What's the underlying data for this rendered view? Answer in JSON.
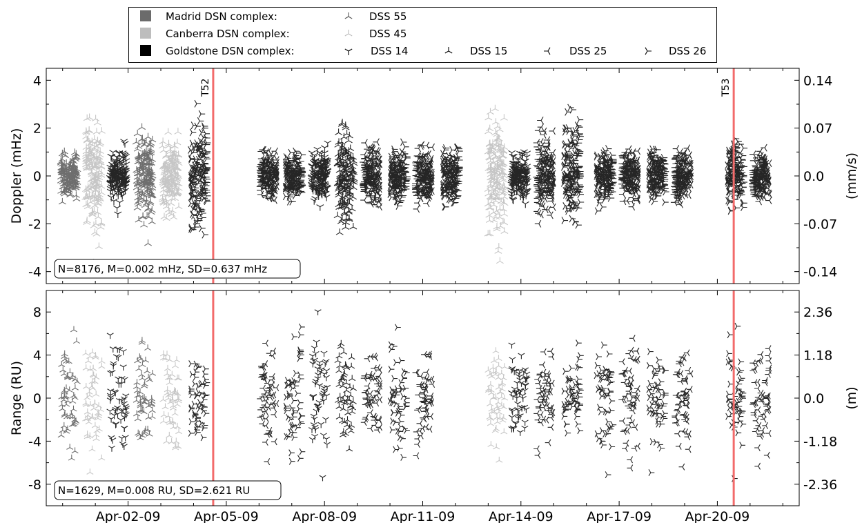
{
  "chart_data": [
    {
      "type": "scatter",
      "panel": "doppler",
      "ylabel": "Doppler (mHz)",
      "ylabel_right": "(mm/s)",
      "ylim": [
        -4.5,
        4.5
      ],
      "yticks": [
        -4,
        -2,
        0,
        2,
        4
      ],
      "yticklabels": [
        "-4",
        "-2",
        "0",
        "2",
        "4"
      ],
      "yticks_right": [
        -4,
        -2,
        0,
        2,
        4
      ],
      "yticklabels_right": [
        "-0.14",
        "-0.07",
        "0.0",
        "0.07",
        "0.14"
      ],
      "stats_label": "N=8176, M=0.002 mHz, SD=0.637 mHz",
      "passes": [
        {
          "day": 31.2,
          "station": "DSS 55",
          "spread": 1.0,
          "max": 1.1
        },
        {
          "day": 31.95,
          "station": "DSS 45",
          "spread": 2.6,
          "max": 3.7
        },
        {
          "day": 32.7,
          "station": "DSS 14",
          "spread": 1.2,
          "max": 1.6
        },
        {
          "day": 33.5,
          "station": "DSS 55",
          "spread": 2.1,
          "max": 2.9
        },
        {
          "day": 34.3,
          "station": "DSS 45",
          "spread": 1.8,
          "max": 2.0
        },
        {
          "day": 35.15,
          "station": "DSS 26",
          "spread": 2.6,
          "max": 3.2
        },
        {
          "day": 37.3,
          "station": "DSS 25",
          "spread": 1.2,
          "max": 1.1
        },
        {
          "day": 38.05,
          "station": "DSS 26",
          "spread": 1.2,
          "max": 1.1
        },
        {
          "day": 38.85,
          "station": "DSS 14",
          "spread": 1.1,
          "max": 1.5
        },
        {
          "day": 39.65,
          "station": "DSS 15",
          "spread": 2.3,
          "max": 2.4
        },
        {
          "day": 40.45,
          "station": "DSS 25",
          "spread": 1.5,
          "max": 2.0
        },
        {
          "day": 41.25,
          "station": "DSS 26",
          "spread": 1.4,
          "max": 1.5
        },
        {
          "day": 42.05,
          "station": "DSS 25",
          "spread": 1.3,
          "max": 1.4
        },
        {
          "day": 42.85,
          "station": "DSS 26",
          "spread": 1.3,
          "max": 1.3
        },
        {
          "day": 44.25,
          "station": "DSS 45",
          "spread": 2.8,
          "max": 3.7
        },
        {
          "day": 44.95,
          "station": "DSS 14",
          "spread": 1.1,
          "max": 1.2
        },
        {
          "day": 45.75,
          "station": "DSS 25",
          "spread": 1.9,
          "max": 2.6
        },
        {
          "day": 46.55,
          "station": "DSS 26",
          "spread": 2.6,
          "max": 3.8
        },
        {
          "day": 47.55,
          "station": "DSS 26",
          "spread": 1.4,
          "max": 1.6
        },
        {
          "day": 48.35,
          "station": "DSS 25",
          "spread": 1.3,
          "max": 1.3
        },
        {
          "day": 49.15,
          "station": "DSS 26",
          "spread": 1.2,
          "max": 1.2
        },
        {
          "day": 49.95,
          "station": "DSS 25",
          "spread": 1.2,
          "max": 1.2
        },
        {
          "day": 51.55,
          "station": "DSS 26",
          "spread": 1.5,
          "max": 1.6
        },
        {
          "day": 52.35,
          "station": "DSS 25",
          "spread": 1.1,
          "max": 1.2
        }
      ]
    },
    {
      "type": "scatter",
      "panel": "range",
      "ylabel": "Range (RU)",
      "ylabel_right": "(m)",
      "ylim": [
        -10,
        10
      ],
      "yticks": [
        -8,
        -4,
        0,
        4,
        8
      ],
      "yticklabels": [
        "-8",
        "-4",
        "0",
        "4",
        "8"
      ],
      "yticks_right": [
        -8,
        -4,
        0,
        4,
        8
      ],
      "yticklabels_right": [
        "-2.36",
        "-1.18",
        "0.0",
        "1.18",
        "2.36"
      ],
      "stats_label": "N=1629, M=0.008 RU, SD=2.621 RU",
      "passes": [
        {
          "day": 31.2,
          "station": "DSS 55",
          "spread": 5.5,
          "max": 6.5
        },
        {
          "day": 31.95,
          "station": "DSS 45",
          "spread": 6.5,
          "max": 7.0
        },
        {
          "day": 32.7,
          "station": "DSS 14",
          "spread": 6.5,
          "max": 7.0
        },
        {
          "day": 33.5,
          "station": "DSS 55",
          "spread": 6.0,
          "max": 6.5
        },
        {
          "day": 34.3,
          "station": "DSS 45",
          "spread": 5.5,
          "max": 5.8
        },
        {
          "day": 35.15,
          "station": "DSS 26",
          "spread": 5.0,
          "max": 5.5
        },
        {
          "day": 37.3,
          "station": "DSS 25",
          "spread": 5.5,
          "max": 6.0
        },
        {
          "day": 38.05,
          "station": "DSS 26",
          "spread": 6.5,
          "max": 7.0
        },
        {
          "day": 38.85,
          "station": "DSS 14",
          "spread": 7.5,
          "max": 8.2
        },
        {
          "day": 39.65,
          "station": "DSS 15",
          "spread": 5.5,
          "max": 5.8
        },
        {
          "day": 40.45,
          "station": "DSS 25",
          "spread": 4.5,
          "max": 4.5
        },
        {
          "day": 41.25,
          "station": "DSS 26",
          "spread": 6.5,
          "max": 7.2
        },
        {
          "day": 42.05,
          "station": "DSS 25",
          "spread": 5.0,
          "max": 5.5
        },
        {
          "day": 44.25,
          "station": "DSS 45",
          "spread": 5.5,
          "max": 6.0
        },
        {
          "day": 44.95,
          "station": "DSS 14",
          "spread": 5.5,
          "max": 6.0
        },
        {
          "day": 45.75,
          "station": "DSS 25",
          "spread": 5.0,
          "max": 5.5
        },
        {
          "day": 46.55,
          "station": "DSS 26",
          "spread": 5.0,
          "max": 5.5
        },
        {
          "day": 47.55,
          "station": "DSS 26",
          "spread": 6.5,
          "max": 7.2
        },
        {
          "day": 48.35,
          "station": "DSS 25",
          "spread": 6.5,
          "max": 7.5
        },
        {
          "day": 49.15,
          "station": "DSS 26",
          "spread": 6.5,
          "max": 7.2
        },
        {
          "day": 49.95,
          "station": "DSS 25",
          "spread": 6.0,
          "max": 6.5
        },
        {
          "day": 51.55,
          "station": "DSS 26",
          "spread": 6.5,
          "max": 7.5
        },
        {
          "day": 52.35,
          "station": "DSS 25",
          "spread": 6.5,
          "max": 6.8
        }
      ]
    }
  ],
  "x_axis": {
    "min_day": 30.5,
    "max_day": 53.5,
    "ticks": [
      {
        "day": 33,
        "label": "Apr-02-09"
      },
      {
        "day": 36,
        "label": "Apr-05-09"
      },
      {
        "day": 39,
        "label": "Apr-08-09"
      },
      {
        "day": 42,
        "label": "Apr-11-09"
      },
      {
        "day": 45,
        "label": "Apr-14-09"
      },
      {
        "day": 48,
        "label": "Apr-17-09"
      },
      {
        "day": 51,
        "label": "Apr-20-09"
      }
    ]
  },
  "events": [
    {
      "day": 35.6,
      "label": "T52"
    },
    {
      "day": 51.5,
      "label": "T53"
    }
  ],
  "legend": {
    "complexes": [
      {
        "label": "Madrid DSN complex:",
        "color": "#6b6b6b"
      },
      {
        "label": "Canberra DSN complex:",
        "color": "#bdbdbd"
      },
      {
        "label": "Goldstone DSN complex:",
        "color": "#000000"
      }
    ],
    "stations": [
      {
        "label": "DSS 55",
        "complex": "Madrid",
        "color": "#555555",
        "rotation": 180
      },
      {
        "label": "DSS 45",
        "complex": "Canberra",
        "color": "#bdbdbd",
        "rotation": 180
      },
      {
        "label": "DSS 14",
        "complex": "Goldstone",
        "color": "#000000",
        "rotation": 0
      },
      {
        "label": "DSS 15",
        "complex": "Goldstone",
        "color": "#000000",
        "rotation": 180
      },
      {
        "label": "DSS 25",
        "complex": "Goldstone",
        "color": "#000000",
        "rotation": 90
      },
      {
        "label": "DSS 26",
        "complex": "Goldstone",
        "color": "#000000",
        "rotation": 270
      }
    ]
  },
  "colors": {
    "event_line": "#f26b6b",
    "axes": "#000000"
  }
}
